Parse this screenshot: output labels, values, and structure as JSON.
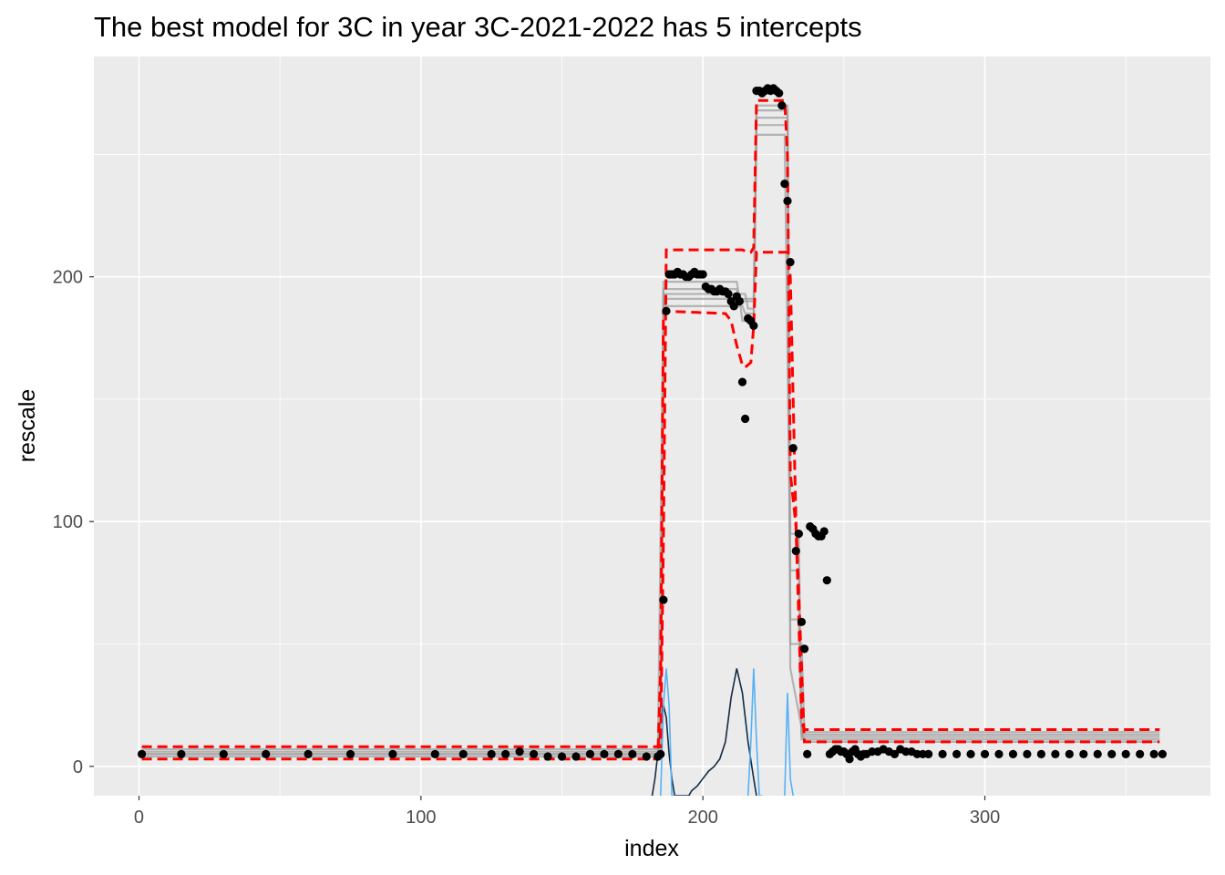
{
  "chart_data": {
    "type": "line",
    "title": "The best model for 3C in year 3C-2021-2022 has 5 intercepts",
    "xlabel": "index",
    "ylabel": "rescale",
    "xlim": [
      -16,
      380
    ],
    "ylim": [
      -12,
      290
    ],
    "x_ticks": [
      {
        "value": 0,
        "label": "0"
      },
      {
        "value": 100,
        "label": "100"
      },
      {
        "value": 200,
        "label": "200"
      },
      {
        "value": 300,
        "label": "300"
      }
    ],
    "y_ticks": [
      {
        "value": 0,
        "label": "0"
      },
      {
        "value": 100,
        "label": "100"
      },
      {
        "value": 200,
        "label": "200"
      }
    ],
    "grid": true,
    "legend": "none",
    "colors": {
      "panel": "#ebebeb",
      "grid": "#ffffff",
      "points": "#000000",
      "model_band": "#ff0000",
      "sample_fits": "#a0a0a0",
      "density_dark": "#132b43",
      "density_light": "#56b1f7"
    },
    "series": [
      {
        "kind": "points",
        "x": [
          1,
          15,
          30,
          45,
          60,
          75,
          90,
          105,
          115,
          125,
          130,
          135,
          140,
          145,
          150,
          155,
          160,
          165,
          170,
          175,
          180,
          184,
          185,
          186,
          187,
          188,
          189,
          190,
          191,
          192,
          193,
          194,
          195,
          196,
          197,
          198,
          199,
          200,
          201,
          202,
          203,
          204,
          205,
          206,
          207,
          208,
          209,
          210,
          211,
          212,
          213,
          214,
          215,
          216,
          217,
          218,
          219,
          220,
          221,
          222,
          223,
          224,
          225,
          226,
          227,
          228,
          229,
          230,
          231,
          232,
          233,
          234,
          235,
          236,
          237,
          238,
          239,
          240,
          241,
          242,
          243,
          244,
          245,
          246,
          247,
          248,
          249,
          250,
          251,
          252,
          253,
          254,
          255,
          256,
          257,
          258,
          260,
          262,
          264,
          266,
          268,
          270,
          272,
          274,
          276,
          278,
          280,
          285,
          290,
          295,
          300,
          305,
          310,
          315,
          320,
          325,
          330,
          335,
          340,
          345,
          350,
          355,
          360,
          363
        ],
        "y": [
          5,
          5,
          5,
          5,
          5,
          5,
          5,
          5,
          5,
          5,
          5,
          6,
          5,
          4,
          4,
          4,
          5,
          5,
          5,
          5,
          4,
          4,
          5,
          68,
          186,
          201,
          201,
          201,
          202,
          201,
          201,
          200,
          200,
          201,
          202,
          201,
          201,
          201,
          196,
          195,
          195,
          194,
          194,
          195,
          194,
          194,
          193,
          190,
          188,
          192,
          190,
          157,
          142,
          183,
          182,
          180,
          276,
          276,
          275,
          276,
          277,
          276,
          277,
          276,
          275,
          270,
          238,
          231,
          206,
          130,
          88,
          95,
          59,
          48,
          5,
          98,
          97,
          95,
          94,
          94,
          96,
          76,
          5,
          6,
          7,
          7,
          6,
          6,
          5,
          3,
          6,
          7,
          5,
          4,
          5,
          5,
          6,
          6,
          7,
          6,
          5,
          7,
          6,
          6,
          5,
          5,
          5,
          5,
          5,
          5,
          5,
          5,
          5,
          5,
          5,
          5,
          5,
          5,
          5,
          5,
          5,
          5,
          5,
          5
        ]
      },
      {
        "kind": "model_band",
        "name": "",
        "upper": {
          "x": [
            1,
            185,
            186,
            187,
            214,
            216,
            217,
            218,
            219,
            229,
            230,
            231,
            233,
            234,
            235,
            236,
            362
          ],
          "y": [
            8,
            8,
            93,
            211,
            211,
            210,
            210,
            212,
            272,
            272,
            250,
            120,
            98,
            60,
            18,
            15,
            15
          ]
        },
        "lower": {
          "x": [
            1,
            184,
            185,
            186,
            208,
            210,
            212,
            214,
            215,
            217,
            218,
            219,
            230,
            231,
            232,
            233,
            234,
            235,
            236,
            362
          ],
          "y": [
            3,
            3,
            40,
            186,
            185,
            182,
            172,
            164,
            163,
            165,
            180,
            210,
            210,
            200,
            150,
            100,
            70,
            40,
            10,
            10
          ]
        }
      },
      {
        "kind": "sample_fits",
        "levels": [
          {
            "x": [
              1,
              185,
              186,
              214,
              215,
              218,
              219,
              230,
              231,
              234,
              235,
              362
            ],
            "y": [
              5,
              5,
              188,
              188,
              185,
              185,
              262,
              262,
              95,
              95,
              11,
              11
            ]
          },
          {
            "x": [
              1,
              185,
              186,
              212,
              213,
              218,
              219,
              230,
              231,
              234,
              235,
              362
            ],
            "y": [
              6,
              6,
              195,
              195,
              190,
              190,
              268,
              268,
              60,
              60,
              13,
              13
            ]
          },
          {
            "x": [
              1,
              184,
              186,
              213,
              214,
              218,
              219,
              229,
              231,
              234,
              235,
              362
            ],
            "y": [
              4,
              4,
              191,
              191,
              182,
              182,
              258,
              258,
              80,
              80,
              12,
              12
            ]
          },
          {
            "x": [
              1,
              185,
              186,
              212,
              213,
              218,
              219,
              230,
              231,
              235,
              236,
              362
            ],
            "y": [
              7,
              7,
              198,
              198,
              191,
              191,
              265,
              265,
              50,
              50,
              14,
              14
            ]
          },
          {
            "x": [
              1,
              185,
              186,
              215,
              216,
              218,
              219,
              230,
              231,
              236,
              362
            ],
            "y": [
              5,
              5,
              193,
              193,
              187,
              187,
              270,
              270,
              40,
              10,
              10
            ]
          }
        ]
      },
      {
        "kind": "density",
        "dark": {
          "x": [
            182,
            183,
            184,
            185,
            186,
            187,
            188,
            189,
            190,
            195,
            196,
            198,
            200,
            202,
            204,
            206,
            208,
            210,
            212,
            214,
            216,
            218,
            219
          ],
          "y": [
            -12,
            -5,
            5,
            20,
            25,
            20,
            5,
            -5,
            -12,
            -12,
            -10,
            -8,
            -5,
            -2,
            0,
            3,
            10,
            28,
            40,
            30,
            10,
            -5,
            -12
          ]
        },
        "light": [
          {
            "x": [
              185,
              186,
              187,
              188,
              189,
              190
            ],
            "y": [
              -12,
              25,
              40,
              25,
              -12,
              -12
            ]
          },
          {
            "x": [
              216,
              217,
              218,
              219,
              220,
              221
            ],
            "y": [
              -12,
              10,
              40,
              10,
              -12,
              -12
            ]
          },
          {
            "x": [
              229,
              230,
              231,
              232
            ],
            "y": [
              -12,
              30,
              -5,
              -12
            ]
          }
        ]
      }
    ]
  }
}
